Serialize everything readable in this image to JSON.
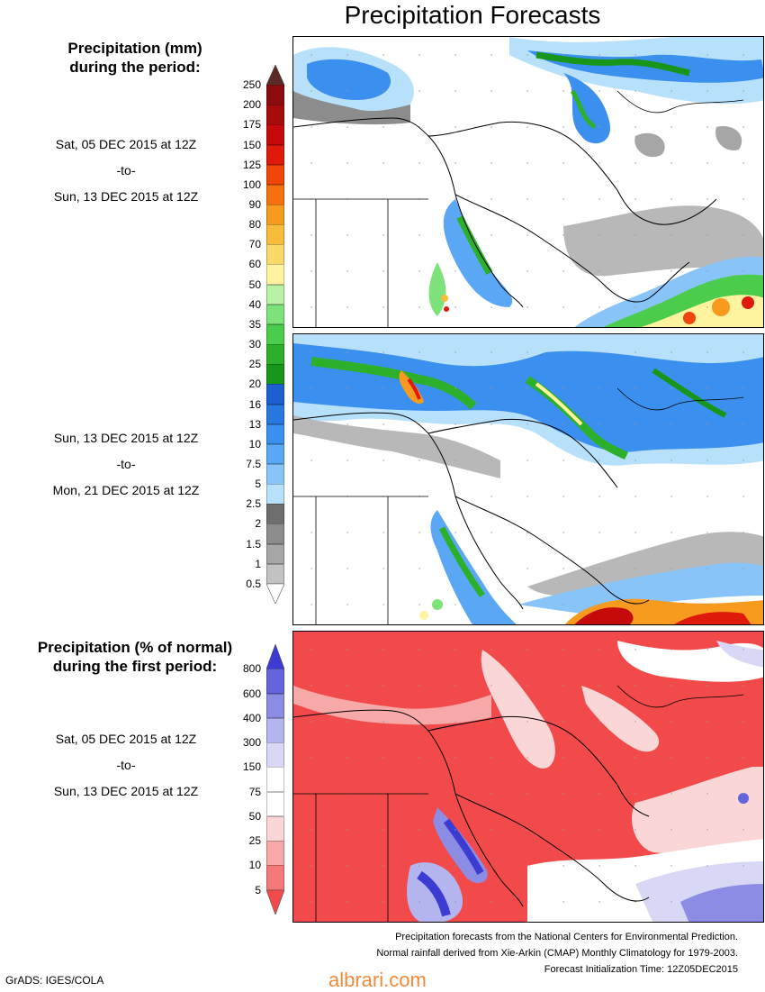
{
  "title": "Precipitation Forecasts",
  "section_mm": {
    "title_line1": "Precipitation (mm)",
    "title_line2": "during the period:"
  },
  "section_pct": {
    "title_line1": "Precipitation (% of normal)",
    "title_line2": "during the first period:"
  },
  "period1": {
    "start": "Sat, 05 DEC 2015 at 12Z",
    "to": "-to-",
    "end": "Sun, 13 DEC 2015 at 12Z"
  },
  "period2": {
    "start": "Sun, 13 DEC 2015 at 12Z",
    "to": "-to-",
    "end": "Mon, 21 DEC 2015 at 12Z"
  },
  "period3": {
    "start": "Sat, 05 DEC 2015 at 12Z",
    "to": "-to-",
    "end": "Sun, 13 DEC 2015 at 12Z"
  },
  "colorbar_mm": {
    "labels": [
      "250",
      "200",
      "175",
      "150",
      "125",
      "100",
      "90",
      "80",
      "70",
      "60",
      "50",
      "40",
      "35",
      "30",
      "25",
      "20",
      "16",
      "13",
      "10",
      "7.5",
      "5",
      "2.5",
      "2",
      "1.5",
      "1",
      "0.5"
    ],
    "colors": [
      "#5c2a24",
      "#8a0c0c",
      "#a50d0d",
      "#c40a0a",
      "#e01a0a",
      "#f0460a",
      "#f7700f",
      "#f79a1e",
      "#f9bc3a",
      "#fbd86a",
      "#fff3a0",
      "#b9f2a4",
      "#7ee27a",
      "#4ccc4c",
      "#2cb02c",
      "#18961a",
      "#1e5fd0",
      "#2878e0",
      "#3b8fee",
      "#5aa8f5",
      "#88c4f8",
      "#b7e0fb",
      "#6e6e6e",
      "#8c8c8c",
      "#a6a6a6",
      "#c2c2c2",
      "#ffffff"
    ]
  },
  "colorbar_pct": {
    "labels": [
      "800",
      "600",
      "400",
      "300",
      "150",
      "75",
      "50",
      "25",
      "10",
      "5"
    ],
    "colors": [
      "#3c3cd2",
      "#6464dc",
      "#8c8ce4",
      "#b4b4ee",
      "#d8d8f6",
      "#ffffff",
      "#ffffff",
      "#fbd6d6",
      "#f7a8a8",
      "#f47a7a",
      "#f24a4a"
    ]
  },
  "footer": {
    "line1": "Precipitation forecasts from the National Centers for Environmental Prediction.",
    "line2": "Normal rainfall derived from Xie-Arkin (CMAP) Monthly Climatology for 1979-2003.",
    "line3": "Forecast Initialization Time: 12Z05DEC2015"
  },
  "credit": "GrADS: IGES/COLA",
  "watermark": "albrari.com"
}
